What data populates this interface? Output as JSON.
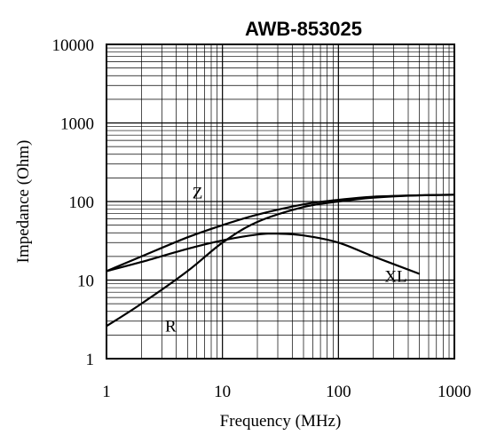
{
  "chart_data": {
    "type": "line",
    "title": "AWB-853025",
    "xlabel": "Frequency (MHz)",
    "ylabel": "Impedance (Ohm)",
    "xscale": "log",
    "yscale": "log",
    "xlim": [
      1,
      1000
    ],
    "ylim": [
      1,
      10000
    ],
    "x_ticks": [
      "1",
      "10",
      "100",
      "1000"
    ],
    "y_ticks": [
      "1",
      "10",
      "100",
      "1000",
      "10000"
    ],
    "grid": true,
    "series": [
      {
        "name": "Z",
        "x": [
          1,
          2,
          5,
          10,
          20,
          50,
          100,
          200,
          500,
          1000
        ],
        "y": [
          13,
          20,
          35,
          50,
          68,
          92,
          105,
          115,
          120,
          122
        ]
      },
      {
        "name": "XL",
        "x": [
          1,
          2,
          5,
          10,
          20,
          30,
          50,
          100,
          200,
          500
        ],
        "y": [
          13,
          17,
          25,
          32,
          38,
          39,
          37,
          30,
          20,
          12
        ]
      },
      {
        "name": "R",
        "x": [
          1,
          2,
          5,
          10,
          20,
          50,
          100,
          200,
          500,
          1000
        ],
        "y": [
          2.6,
          5,
          13,
          30,
          55,
          85,
          100,
          112,
          120,
          122
        ]
      }
    ]
  }
}
